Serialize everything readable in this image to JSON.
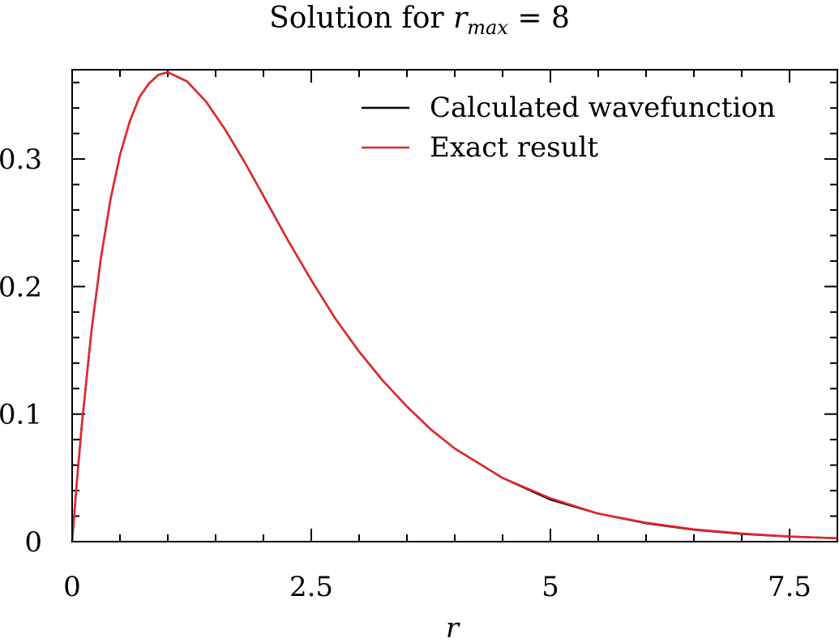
{
  "chart_data": {
    "type": "line",
    "title": {
      "prefix": "Solution for ",
      "var": "r",
      "sub": "max",
      "suffix": " = 8"
    },
    "xlabel": "r",
    "ylabel": "",
    "xlim": [
      0,
      8
    ],
    "ylim": [
      0,
      0.37
    ],
    "x_ticks": [
      0,
      2.5,
      5,
      7.5
    ],
    "x_tick_labels": [
      "0",
      "2.5",
      "5",
      "7.5"
    ],
    "y_ticks": [
      0,
      0.1,
      0.2,
      0.3
    ],
    "y_tick_labels": [
      "0",
      "0.1",
      "0.2",
      "0.3"
    ],
    "grid": false,
    "legend_position": "top-right",
    "x": [
      0,
      0.05,
      0.1,
      0.2,
      0.3,
      0.4,
      0.5,
      0.6,
      0.7,
      0.8,
      0.9,
      1.0,
      1.2,
      1.4,
      1.6,
      1.8,
      2.0,
      2.25,
      2.5,
      2.75,
      3.0,
      3.25,
      3.5,
      3.75,
      4.0,
      4.5,
      5.0,
      5.5,
      6.0,
      6.5,
      7.0,
      7.5,
      8.0
    ],
    "series": [
      {
        "name": "Calculated wavefunction",
        "color": "#000000",
        "values": [
          0,
          0.0476,
          0.0905,
          0.164,
          0.222,
          0.268,
          0.303,
          0.329,
          0.348,
          0.359,
          0.366,
          0.368,
          0.361,
          0.345,
          0.323,
          0.298,
          0.271,
          0.237,
          0.205,
          0.175,
          0.149,
          0.126,
          0.106,
          0.088,
          0.073,
          0.05,
          0.033,
          0.022,
          0.0145,
          0.0094,
          0.0061,
          0.004,
          0.0026
        ]
      },
      {
        "name": "Exact result",
        "color": "#e8262e",
        "values": [
          0,
          0.0476,
          0.0905,
          0.164,
          0.222,
          0.268,
          0.303,
          0.329,
          0.348,
          0.359,
          0.366,
          0.368,
          0.361,
          0.345,
          0.323,
          0.298,
          0.271,
          0.237,
          0.205,
          0.175,
          0.149,
          0.126,
          0.106,
          0.088,
          0.073,
          0.05,
          0.034,
          0.022,
          0.0149,
          0.0097,
          0.0064,
          0.0041,
          0.0027
        ]
      }
    ]
  }
}
